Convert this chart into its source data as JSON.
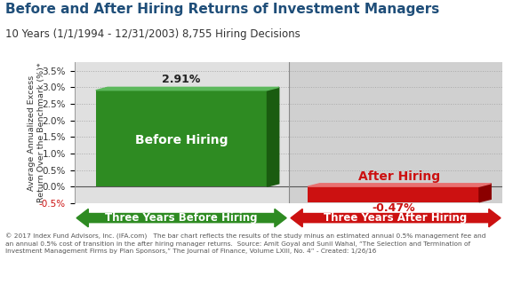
{
  "title": "Before and After Hiring Returns of Investment Managers",
  "subtitle": "10 Years (1/1/1994 - 12/31/2003) 8,755 Hiring Decisions",
  "ylabel": "Average Annualized Excess\nReturn Over the Benchmark (%)*",
  "before_value": 2.91,
  "after_value": -0.47,
  "before_label": "Before Hiring",
  "after_label": "After Hiring",
  "before_arrow_label": "Three Years Before Hiring",
  "after_arrow_label": "Three Years After Hiring",
  "before_value_label": "2.91%",
  "after_value_label": "-0.47%",
  "ylim": [
    -0.5,
    3.75
  ],
  "yticks": [
    -0.5,
    0.0,
    0.5,
    1.0,
    1.5,
    2.0,
    2.5,
    3.0,
    3.5
  ],
  "ytick_labels": [
    "-0.5%",
    "0.0%",
    "0.5%",
    "1.0%",
    "1.5%",
    "2.0%",
    "2.5%",
    "3.0%",
    "3.5%"
  ],
  "before_bar_color": "#2e8b22",
  "before_bar_dark_color": "#1a5c10",
  "before_bar_light_color": "#5cb85c",
  "after_bar_color": "#cc1111",
  "after_bar_dark_color": "#8b0000",
  "after_bar_light_color": "#e87070",
  "bg_color_left": "#e0e0e0",
  "bg_color_right": "#d0d0d0",
  "grid_color": "#aaaaaa",
  "title_color": "#1f4e79",
  "subtitle_color": "#333333",
  "footnote_line1": "© 2017 Index Fund Advisors, Inc. (IFA.com)   The bar chart reflects the results of the study minus an estimated annual 0.5% management fee and",
  "footnote_line2": "an annual 0.5% cost of transition in the after hiring manager returns.  Source: Amit Goyal and Sunil Wahal, “The Selection and Termination of",
  "footnote_line3": "Investment Management Firms by Plan Sponsors,” The Journal of Finance, Volume LXIII, No. 4” - Created: 1/26/16",
  "before_arrow_color": "#2e8b22",
  "after_arrow_color": "#cc1111"
}
